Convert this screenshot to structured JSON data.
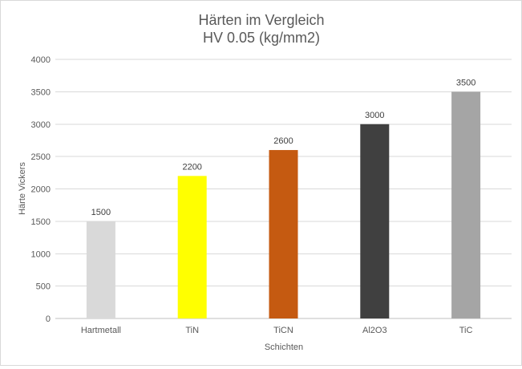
{
  "chart_data": {
    "type": "bar",
    "title": "Härten im Vergleich",
    "subtitle": "HV 0.05 (kg/mm2)",
    "xlabel": "Schichten",
    "ylabel": "Härte Vickers",
    "categories": [
      "Hartmetall",
      "TiN",
      "TiCN",
      "Al2O3",
      "TiC"
    ],
    "values": [
      1500,
      2200,
      2600,
      3000,
      3500
    ],
    "data_labels": [
      "1500",
      "2200",
      "2600",
      "3000",
      "3500"
    ],
    "bar_colors": [
      "#d9d9d9",
      "#ffff00",
      "#c55a11",
      "#404040",
      "#a5a5a5"
    ],
    "ylim": [
      0,
      4000
    ],
    "yticks": [
      0,
      500,
      1000,
      1500,
      2000,
      2500,
      3000,
      3500,
      4000
    ],
    "ytick_labels": [
      "0",
      "500",
      "1000",
      "1500",
      "2000",
      "2500",
      "3000",
      "3500",
      "4000"
    ],
    "grid": true,
    "legend": false
  }
}
